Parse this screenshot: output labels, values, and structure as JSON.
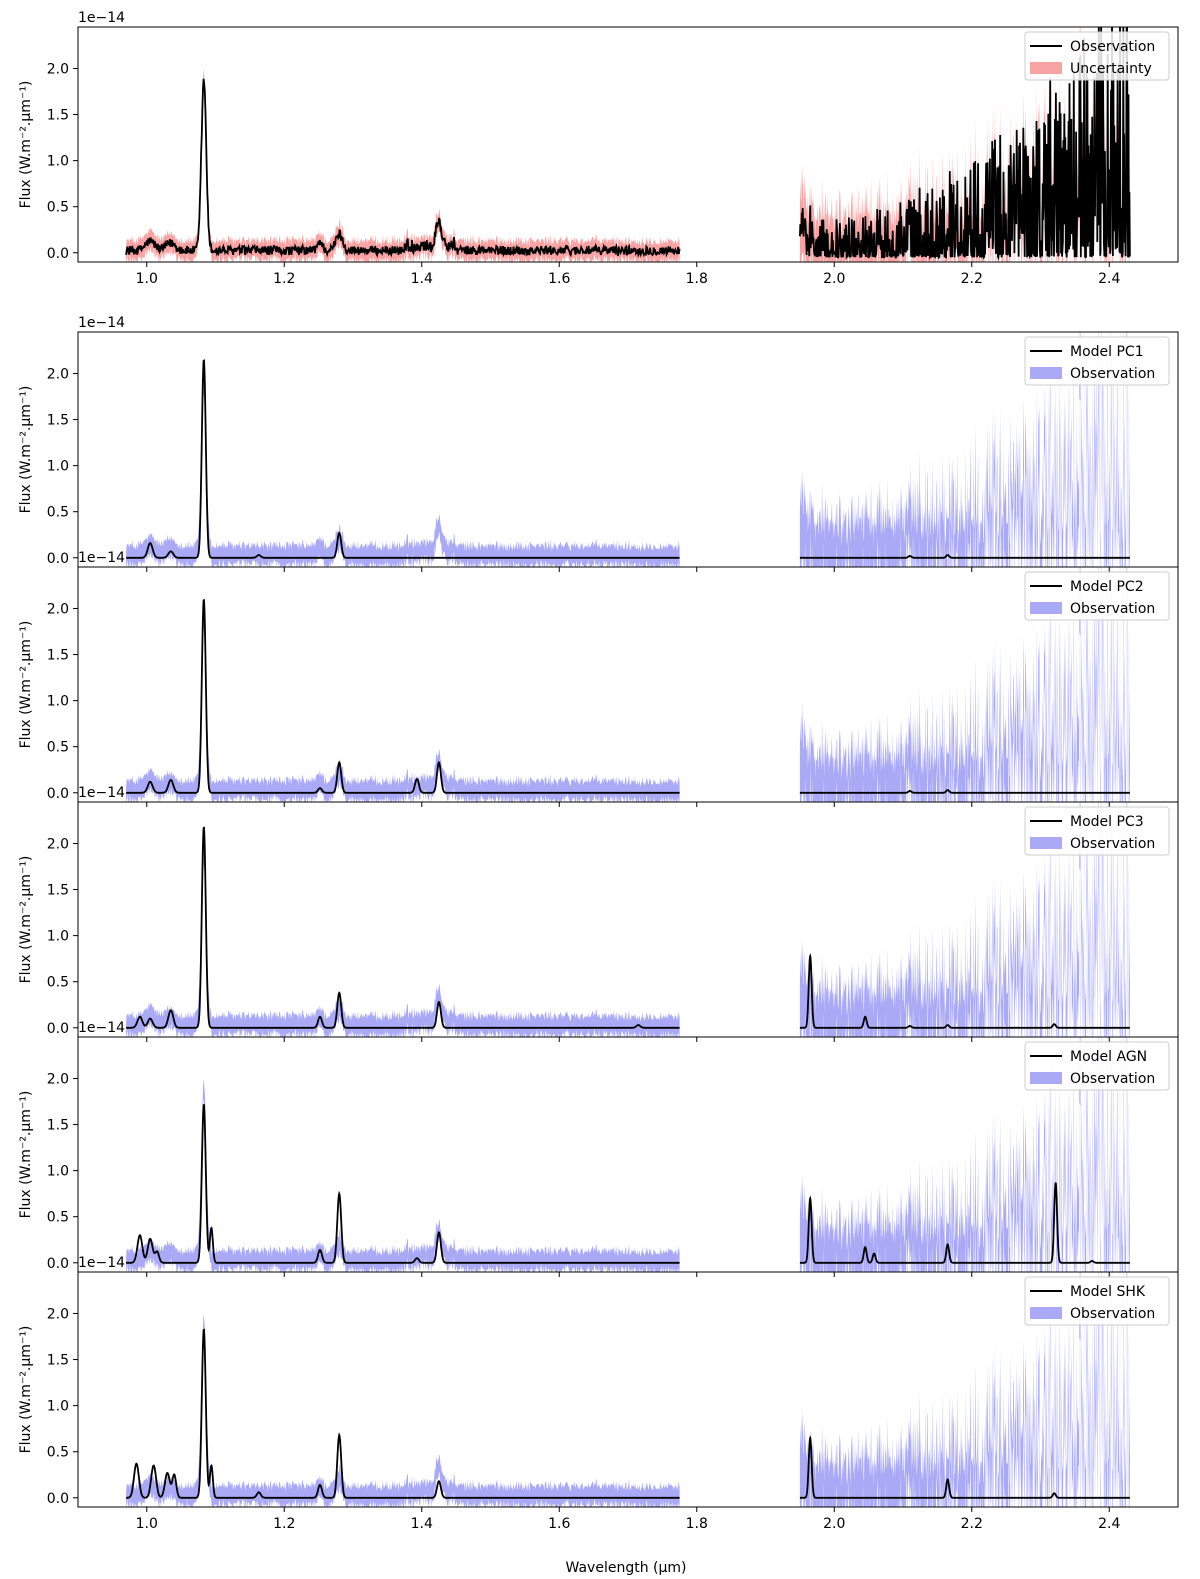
{
  "figure": {
    "xlabel": "Wavelength (μm)",
    "ylabel": "Flux (W.m⁻².μm⁻¹)",
    "offset_text": "1e−14"
  },
  "colors": {
    "line": "#000000",
    "uncertainty_fill": "#f7a3a3",
    "observation_fill": "#a9a9f6"
  },
  "chart_data": [
    {
      "type": "line",
      "panel": "observation",
      "legend": [
        "Observation",
        "Uncertainty"
      ],
      "legend_location": "top-right",
      "xlim": [
        0.9,
        2.5
      ],
      "ylim": [
        -0.1,
        2.45
      ],
      "y_multiplier": "1e-14",
      "x_ticks": [
        "1.0",
        "1.2",
        "1.4",
        "1.6",
        "1.8",
        "2.0",
        "2.2",
        "2.4"
      ],
      "y_ticks": [
        "0.0",
        "0.5",
        "1.0",
        "1.5",
        "2.0"
      ],
      "segments": [
        [
          0.97,
          1.775
        ],
        [
          1.95,
          2.43
        ]
      ],
      "peaks": [
        [
          1.083,
          1.88,
          0.005
        ],
        [
          1.28,
          0.2,
          0.007
        ],
        [
          1.425,
          0.3,
          0.006
        ],
        [
          1.005,
          0.1,
          0.01
        ],
        [
          1.252,
          0.1,
          0.006
        ],
        [
          1.035,
          0.08,
          0.01
        ]
      ]
    },
    {
      "type": "line",
      "panel": "model",
      "legend": [
        "Model PC1",
        "Observation"
      ],
      "legend_location": "top-right",
      "xlim": [
        0.9,
        2.5
      ],
      "ylim": [
        -0.1,
        2.45
      ],
      "y_multiplier": "1e-14",
      "y_ticks": [
        "0.0",
        "0.5",
        "1.0",
        "1.5",
        "2.0"
      ],
      "segments": [
        [
          0.97,
          1.775
        ],
        [
          1.95,
          2.43
        ]
      ],
      "peaks": [
        [
          1.083,
          2.15,
          0.004
        ],
        [
          1.28,
          0.27,
          0.004
        ],
        [
          1.005,
          0.16,
          0.005
        ],
        [
          1.035,
          0.07,
          0.005
        ],
        [
          1.163,
          0.03,
          0.004
        ],
        [
          2.11,
          0.02,
          0.003
        ],
        [
          2.165,
          0.03,
          0.003
        ]
      ]
    },
    {
      "type": "line",
      "panel": "model",
      "legend": [
        "Model PC2",
        "Observation"
      ],
      "legend_location": "top-right",
      "xlim": [
        0.9,
        2.5
      ],
      "ylim": [
        -0.1,
        2.45
      ],
      "y_multiplier": "1e-14",
      "y_ticks": [
        "0.0",
        "0.5",
        "1.0",
        "1.5",
        "2.0"
      ],
      "segments": [
        [
          0.97,
          1.775
        ],
        [
          1.95,
          2.43
        ]
      ],
      "peaks": [
        [
          1.083,
          2.1,
          0.004
        ],
        [
          1.28,
          0.33,
          0.004
        ],
        [
          1.425,
          0.33,
          0.004
        ],
        [
          1.393,
          0.15,
          0.004
        ],
        [
          1.005,
          0.12,
          0.005
        ],
        [
          1.035,
          0.14,
          0.005
        ],
        [
          1.252,
          0.05,
          0.004
        ],
        [
          2.11,
          0.02,
          0.003
        ],
        [
          2.165,
          0.03,
          0.003
        ]
      ]
    },
    {
      "type": "line",
      "panel": "model",
      "legend": [
        "Model PC3",
        "Observation"
      ],
      "legend_location": "top-right",
      "xlim": [
        0.9,
        2.5
      ],
      "ylim": [
        -0.1,
        2.45
      ],
      "y_multiplier": "1e-14",
      "y_ticks": [
        "0.0",
        "0.5",
        "1.0",
        "1.5",
        "2.0"
      ],
      "segments": [
        [
          0.97,
          1.775
        ],
        [
          1.95,
          2.43
        ]
      ],
      "peaks": [
        [
          1.083,
          2.18,
          0.004
        ],
        [
          1.28,
          0.38,
          0.004
        ],
        [
          1.425,
          0.28,
          0.004
        ],
        [
          1.252,
          0.12,
          0.004
        ],
        [
          0.99,
          0.12,
          0.005
        ],
        [
          1.005,
          0.1,
          0.005
        ],
        [
          1.035,
          0.19,
          0.005
        ],
        [
          1.965,
          0.78,
          0.003
        ],
        [
          2.045,
          0.12,
          0.003
        ],
        [
          2.11,
          0.02,
          0.003
        ],
        [
          2.165,
          0.03,
          0.003
        ],
        [
          2.32,
          0.04,
          0.003
        ],
        [
          1.715,
          0.03,
          0.004
        ]
      ]
    },
    {
      "type": "line",
      "panel": "model",
      "legend": [
        "Model AGN",
        "Observation"
      ],
      "legend_location": "top-right",
      "xlim": [
        0.9,
        2.5
      ],
      "ylim": [
        -0.1,
        2.45
      ],
      "y_multiplier": "1e-14",
      "y_ticks": [
        "0.0",
        "0.5",
        "1.0",
        "1.5",
        "2.0"
      ],
      "segments": [
        [
          0.97,
          1.775
        ],
        [
          1.95,
          2.43
        ]
      ],
      "peaks": [
        [
          1.083,
          1.72,
          0.004
        ],
        [
          1.094,
          0.38,
          0.003
        ],
        [
          1.28,
          0.75,
          0.004
        ],
        [
          1.425,
          0.33,
          0.004
        ],
        [
          1.252,
          0.14,
          0.004
        ],
        [
          0.99,
          0.3,
          0.005
        ],
        [
          1.005,
          0.26,
          0.005
        ],
        [
          1.015,
          0.12,
          0.004
        ],
        [
          1.393,
          0.05,
          0.004
        ],
        [
          1.965,
          0.7,
          0.003
        ],
        [
          2.045,
          0.17,
          0.003
        ],
        [
          2.058,
          0.1,
          0.003
        ],
        [
          2.165,
          0.2,
          0.003
        ],
        [
          2.322,
          0.87,
          0.003
        ],
        [
          2.375,
          0.02,
          0.003
        ]
      ]
    },
    {
      "type": "line",
      "panel": "model",
      "legend": [
        "Model SHK",
        "Observation"
      ],
      "legend_location": "top-right",
      "xlim": [
        0.9,
        2.5
      ],
      "ylim": [
        -0.1,
        2.45
      ],
      "y_multiplier": "1e-14",
      "x_ticks": [
        "1.0",
        "1.2",
        "1.4",
        "1.6",
        "1.8",
        "2.0",
        "2.2",
        "2.4"
      ],
      "y_ticks": [
        "0.0",
        "0.5",
        "1.0",
        "1.5",
        "2.0"
      ],
      "segments": [
        [
          0.97,
          1.775
        ],
        [
          1.95,
          2.43
        ]
      ],
      "peaks": [
        [
          1.083,
          1.83,
          0.004
        ],
        [
          1.094,
          0.35,
          0.003
        ],
        [
          1.28,
          0.68,
          0.004
        ],
        [
          1.425,
          0.18,
          0.004
        ],
        [
          1.252,
          0.14,
          0.004
        ],
        [
          0.985,
          0.37,
          0.005
        ],
        [
          1.01,
          0.35,
          0.005
        ],
        [
          1.03,
          0.27,
          0.005
        ],
        [
          1.04,
          0.25,
          0.004
        ],
        [
          1.163,
          0.06,
          0.004
        ],
        [
          1.965,
          0.65,
          0.003
        ],
        [
          2.165,
          0.2,
          0.003
        ],
        [
          2.32,
          0.05,
          0.003
        ]
      ]
    }
  ]
}
